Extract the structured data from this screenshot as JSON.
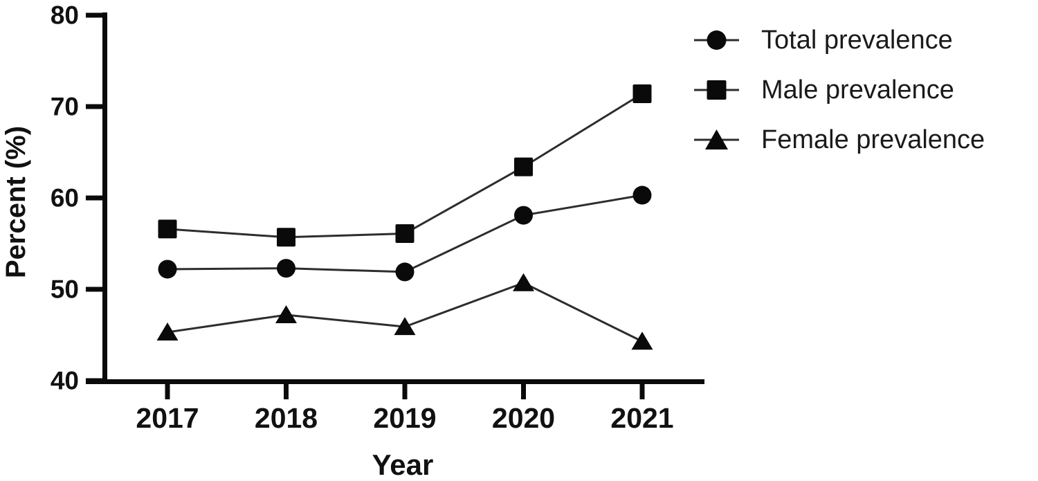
{
  "figure": {
    "background_color": "#ffffff",
    "ink_color": "#0a0a0a",
    "series_line_color": "#2d2d2d"
  },
  "chart_data": {
    "type": "line",
    "title": "",
    "xlabel": "Year",
    "ylabel": "Percent (%)",
    "categories": [
      "2017",
      "2018",
      "2019",
      "2020",
      "2021"
    ],
    "yticks": [
      40,
      50,
      60,
      70,
      80
    ],
    "ylim": [
      40,
      80
    ],
    "grid": false,
    "legend_position": "top-right",
    "series": [
      {
        "name": "Total prevalence",
        "marker": "circle",
        "values": [
          52.2,
          52.3,
          51.9,
          58.1,
          60.3
        ]
      },
      {
        "name": "Male prevalence",
        "marker": "square",
        "values": [
          56.6,
          55.7,
          56.1,
          63.4,
          71.4
        ]
      },
      {
        "name": "Female prevalence",
        "marker": "triangle",
        "values": [
          45.3,
          47.2,
          45.9,
          50.7,
          44.3
        ]
      }
    ]
  }
}
